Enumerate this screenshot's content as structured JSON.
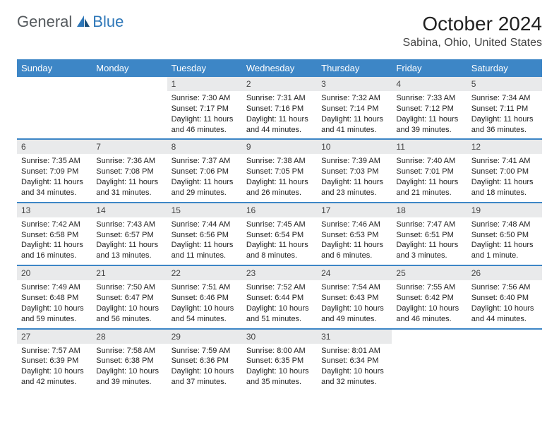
{
  "logo": {
    "text1": "General",
    "text2": "Blue"
  },
  "title": "October 2024",
  "location": "Sabina, Ohio, United States",
  "colors": {
    "header_bg": "#3d86c6",
    "header_text": "#ffffff",
    "daynum_bg": "#e9eaeb",
    "row_border": "#3d86c6",
    "logo_gray": "#555a5e",
    "logo_blue": "#2e77b8"
  },
  "weekdays": [
    "Sunday",
    "Monday",
    "Tuesday",
    "Wednesday",
    "Thursday",
    "Friday",
    "Saturday"
  ],
  "weeks": [
    [
      null,
      null,
      {
        "n": "1",
        "sr": "7:30 AM",
        "ss": "7:17 PM",
        "dl": "11 hours and 46 minutes."
      },
      {
        "n": "2",
        "sr": "7:31 AM",
        "ss": "7:16 PM",
        "dl": "11 hours and 44 minutes."
      },
      {
        "n": "3",
        "sr": "7:32 AM",
        "ss": "7:14 PM",
        "dl": "11 hours and 41 minutes."
      },
      {
        "n": "4",
        "sr": "7:33 AM",
        "ss": "7:12 PM",
        "dl": "11 hours and 39 minutes."
      },
      {
        "n": "5",
        "sr": "7:34 AM",
        "ss": "7:11 PM",
        "dl": "11 hours and 36 minutes."
      }
    ],
    [
      {
        "n": "6",
        "sr": "7:35 AM",
        "ss": "7:09 PM",
        "dl": "11 hours and 34 minutes."
      },
      {
        "n": "7",
        "sr": "7:36 AM",
        "ss": "7:08 PM",
        "dl": "11 hours and 31 minutes."
      },
      {
        "n": "8",
        "sr": "7:37 AM",
        "ss": "7:06 PM",
        "dl": "11 hours and 29 minutes."
      },
      {
        "n": "9",
        "sr": "7:38 AM",
        "ss": "7:05 PM",
        "dl": "11 hours and 26 minutes."
      },
      {
        "n": "10",
        "sr": "7:39 AM",
        "ss": "7:03 PM",
        "dl": "11 hours and 23 minutes."
      },
      {
        "n": "11",
        "sr": "7:40 AM",
        "ss": "7:01 PM",
        "dl": "11 hours and 21 minutes."
      },
      {
        "n": "12",
        "sr": "7:41 AM",
        "ss": "7:00 PM",
        "dl": "11 hours and 18 minutes."
      }
    ],
    [
      {
        "n": "13",
        "sr": "7:42 AM",
        "ss": "6:58 PM",
        "dl": "11 hours and 16 minutes."
      },
      {
        "n": "14",
        "sr": "7:43 AM",
        "ss": "6:57 PM",
        "dl": "11 hours and 13 minutes."
      },
      {
        "n": "15",
        "sr": "7:44 AM",
        "ss": "6:56 PM",
        "dl": "11 hours and 11 minutes."
      },
      {
        "n": "16",
        "sr": "7:45 AM",
        "ss": "6:54 PM",
        "dl": "11 hours and 8 minutes."
      },
      {
        "n": "17",
        "sr": "7:46 AM",
        "ss": "6:53 PM",
        "dl": "11 hours and 6 minutes."
      },
      {
        "n": "18",
        "sr": "7:47 AM",
        "ss": "6:51 PM",
        "dl": "11 hours and 3 minutes."
      },
      {
        "n": "19",
        "sr": "7:48 AM",
        "ss": "6:50 PM",
        "dl": "11 hours and 1 minute."
      }
    ],
    [
      {
        "n": "20",
        "sr": "7:49 AM",
        "ss": "6:48 PM",
        "dl": "10 hours and 59 minutes."
      },
      {
        "n": "21",
        "sr": "7:50 AM",
        "ss": "6:47 PM",
        "dl": "10 hours and 56 minutes."
      },
      {
        "n": "22",
        "sr": "7:51 AM",
        "ss": "6:46 PM",
        "dl": "10 hours and 54 minutes."
      },
      {
        "n": "23",
        "sr": "7:52 AM",
        "ss": "6:44 PM",
        "dl": "10 hours and 51 minutes."
      },
      {
        "n": "24",
        "sr": "7:54 AM",
        "ss": "6:43 PM",
        "dl": "10 hours and 49 minutes."
      },
      {
        "n": "25",
        "sr": "7:55 AM",
        "ss": "6:42 PM",
        "dl": "10 hours and 46 minutes."
      },
      {
        "n": "26",
        "sr": "7:56 AM",
        "ss": "6:40 PM",
        "dl": "10 hours and 44 minutes."
      }
    ],
    [
      {
        "n": "27",
        "sr": "7:57 AM",
        "ss": "6:39 PM",
        "dl": "10 hours and 42 minutes."
      },
      {
        "n": "28",
        "sr": "7:58 AM",
        "ss": "6:38 PM",
        "dl": "10 hours and 39 minutes."
      },
      {
        "n": "29",
        "sr": "7:59 AM",
        "ss": "6:36 PM",
        "dl": "10 hours and 37 minutes."
      },
      {
        "n": "30",
        "sr": "8:00 AM",
        "ss": "6:35 PM",
        "dl": "10 hours and 35 minutes."
      },
      {
        "n": "31",
        "sr": "8:01 AM",
        "ss": "6:34 PM",
        "dl": "10 hours and 32 minutes."
      },
      null,
      null
    ]
  ],
  "labels": {
    "sunrise": "Sunrise: ",
    "sunset": "Sunset: ",
    "daylight": "Daylight: "
  }
}
